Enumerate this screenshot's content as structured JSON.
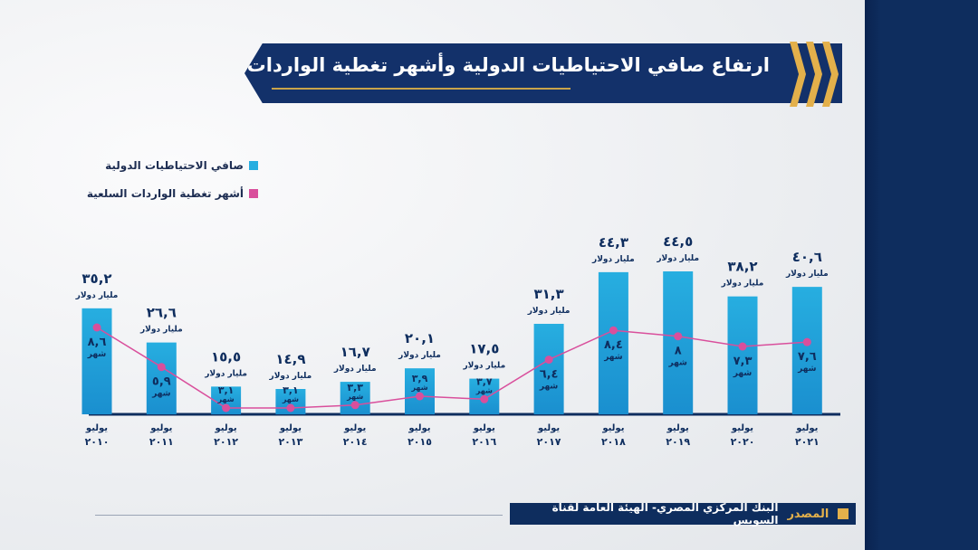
{
  "title": "ارتفاع صافي الاحتياطيات الدولية وأشهر تغطية الواردات السلعية",
  "legend": {
    "reserves": "صافي الاحتياطيات الدولية",
    "months": "أشهر تغطية الواردات السلعية"
  },
  "source": {
    "label": "المصدر",
    "text": "البنك المركزي المصري- الهيئة العامة لقناة السويس"
  },
  "colors": {
    "bar": "#27aee0",
    "bar_dark": "#1a8fcf",
    "line": "#d94f9c",
    "navy": "#0e2d5e",
    "gold": "#e3b04b"
  },
  "chart_data": {
    "type": "bar",
    "categories": [
      "يوليو ٢٠١٠",
      "يوليو ٢٠١١",
      "يوليو ٢٠١٢",
      "يوليو ٢٠١٣",
      "يوليو ٢٠١٤",
      "يوليو ٢٠١٥",
      "يوليو ٢٠١٦",
      "يوليو ٢٠١٧",
      "يوليو ٢٠١٨",
      "يوليو ٢٠١٩",
      "يوليو ٢٠٢٠",
      "يوليو ٢٠٢١"
    ],
    "category_month": "يوليو",
    "category_years": [
      "٢٠١٠",
      "٢٠١١",
      "٢٠١٢",
      "٢٠١٣",
      "٢٠١٤",
      "٢٠١٥",
      "٢٠١٦",
      "٢٠١٧",
      "٢٠١٨",
      "٢٠١٩",
      "٢٠٢٠",
      "٢٠٢١"
    ],
    "series": [
      {
        "name": "صافي الاحتياطيات الدولية",
        "type": "bar",
        "values": [
          35.2,
          26.6,
          15.5,
          14.9,
          16.7,
          20.1,
          17.5,
          31.3,
          44.3,
          44.5,
          38.2,
          40.6
        ],
        "value_labels": [
          "٣٥,٢",
          "٢٦,٦",
          "١٥,٥",
          "١٤,٩",
          "١٦,٧",
          "٢٠,١",
          "١٧,٥",
          "٣١,٣",
          "٤٤,٣",
          "٤٤,٥",
          "٣٨,٢",
          "٤٠,٦"
        ],
        "unit_label": "مليار دولار"
      },
      {
        "name": "أشهر تغطية الواردات السلعية",
        "type": "line",
        "values": [
          8.6,
          5.9,
          3.1,
          3.1,
          3.3,
          3.9,
          3.7,
          6.4,
          8.4,
          8,
          7.3,
          7.6
        ],
        "value_labels": [
          "٨,٦",
          "٥,٩",
          "٣,١",
          "٣,١",
          "٣,٣",
          "٣,٩",
          "٣,٧",
          "٦,٤",
          "٨,٤",
          "٨",
          "٧,٣",
          "٧,٦"
        ],
        "unit_label": "شهر"
      }
    ],
    "ylim": [
      0,
      50
    ]
  }
}
